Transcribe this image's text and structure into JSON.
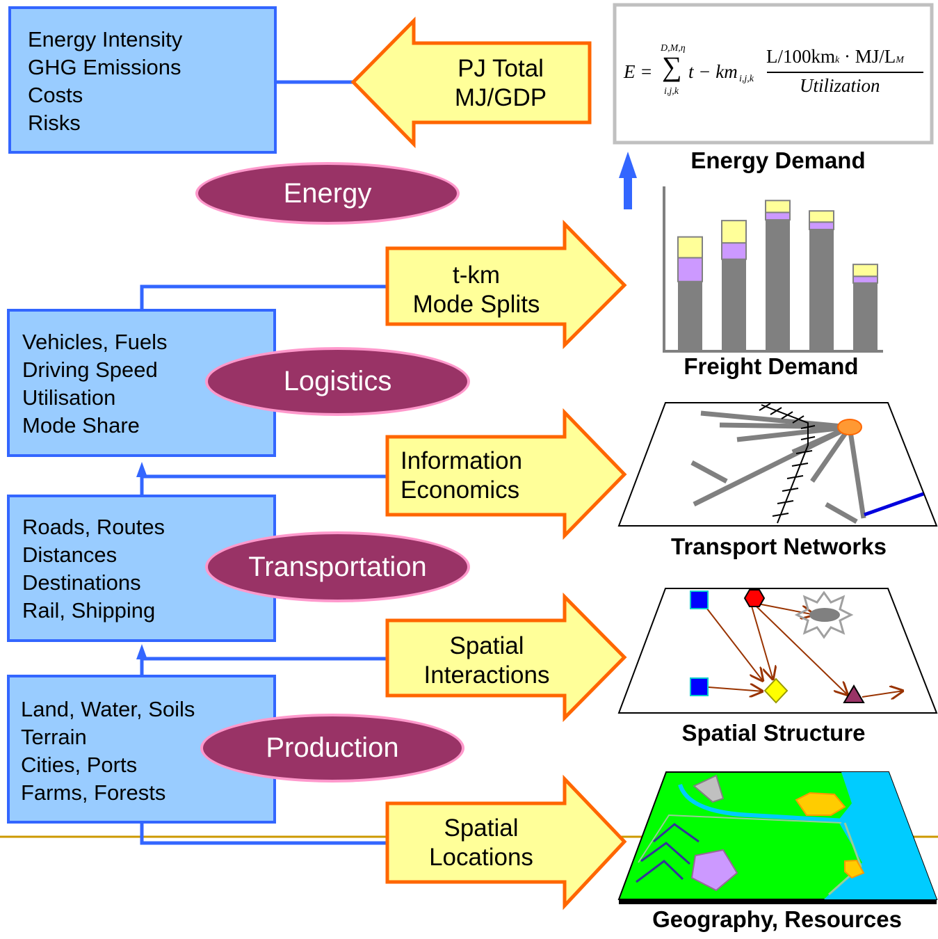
{
  "layers": {
    "energy": {
      "label": "Energy",
      "metrics": [
        "Energy Intensity",
        "GHG Emissions",
        "Costs",
        "Risks"
      ],
      "output": [
        "PJ Total",
        "MJ/GDP"
      ]
    },
    "logistics": {
      "label": "Logistics",
      "factors": [
        "Vehicles, Fuels",
        "Driving Speed",
        "Utilisation",
        "Mode Share"
      ],
      "output": [
        "t-km",
        "Mode Splits"
      ]
    },
    "transportation": {
      "label": "Transportation",
      "factors": [
        "Roads, Routes",
        "Distances",
        "Destinations",
        "Rail, Shipping"
      ],
      "output": [
        "Information",
        "Economics"
      ]
    },
    "production": {
      "label": "Production",
      "factors": [
        "Land, Water, Soils",
        "Terrain",
        "Cities, Ports",
        "Farms, Forests"
      ],
      "output_spatial_interactions": [
        "Spatial",
        "Interactions"
      ],
      "output_spatial_locations": [
        "Spatial",
        "Locations"
      ]
    }
  },
  "panels": {
    "energy_demand": "Energy Demand",
    "freight_demand": "Freight Demand",
    "transport_networks": "Transport Networks",
    "spatial_structure": "Spatial Structure",
    "geography_resources": "Geography, Resources"
  },
  "formula": {
    "lhs": "E =",
    "sum_upper": "D,M,η",
    "sum_lower": "i,j,k",
    "sum_symbol": "∑",
    "term": "t − km",
    "term_sub": "i,j,k",
    "numerator": "L/100km",
    "numerator_sub": "k",
    "numerator_mid": " · MJ/L",
    "numerator_sub2": "M",
    "denominator": "Utilization"
  },
  "freight_chart": {
    "type": "stacked-bar",
    "values": [
      {
        "base": 0.92,
        "mid": 0.32,
        "top": 0.28
      },
      {
        "base": 1.22,
        "mid": 0.22,
        "top": 0.3
      },
      {
        "base": 1.75,
        "mid": 0.1,
        "top": 0.16
      },
      {
        "base": 1.62,
        "mid": 0.1,
        "top": 0.15
      },
      {
        "base": 0.9,
        "mid": 0.09,
        "top": 0.16
      }
    ],
    "max": 2.2,
    "colors": {
      "base": "#808080",
      "mid": "#cc99ff",
      "top": "#ffff99"
    }
  },
  "colors": {
    "box_fill": "#99ccff",
    "box_border": "#3366ff",
    "oval_fill": "#993366",
    "oval_border": "#ff99cc",
    "arrow_fill": "#ffff99",
    "arrow_border": "#ff6600",
    "land_green": "#00ff00",
    "water_cyan": "#00ccff",
    "divider": "#cc9900"
  }
}
